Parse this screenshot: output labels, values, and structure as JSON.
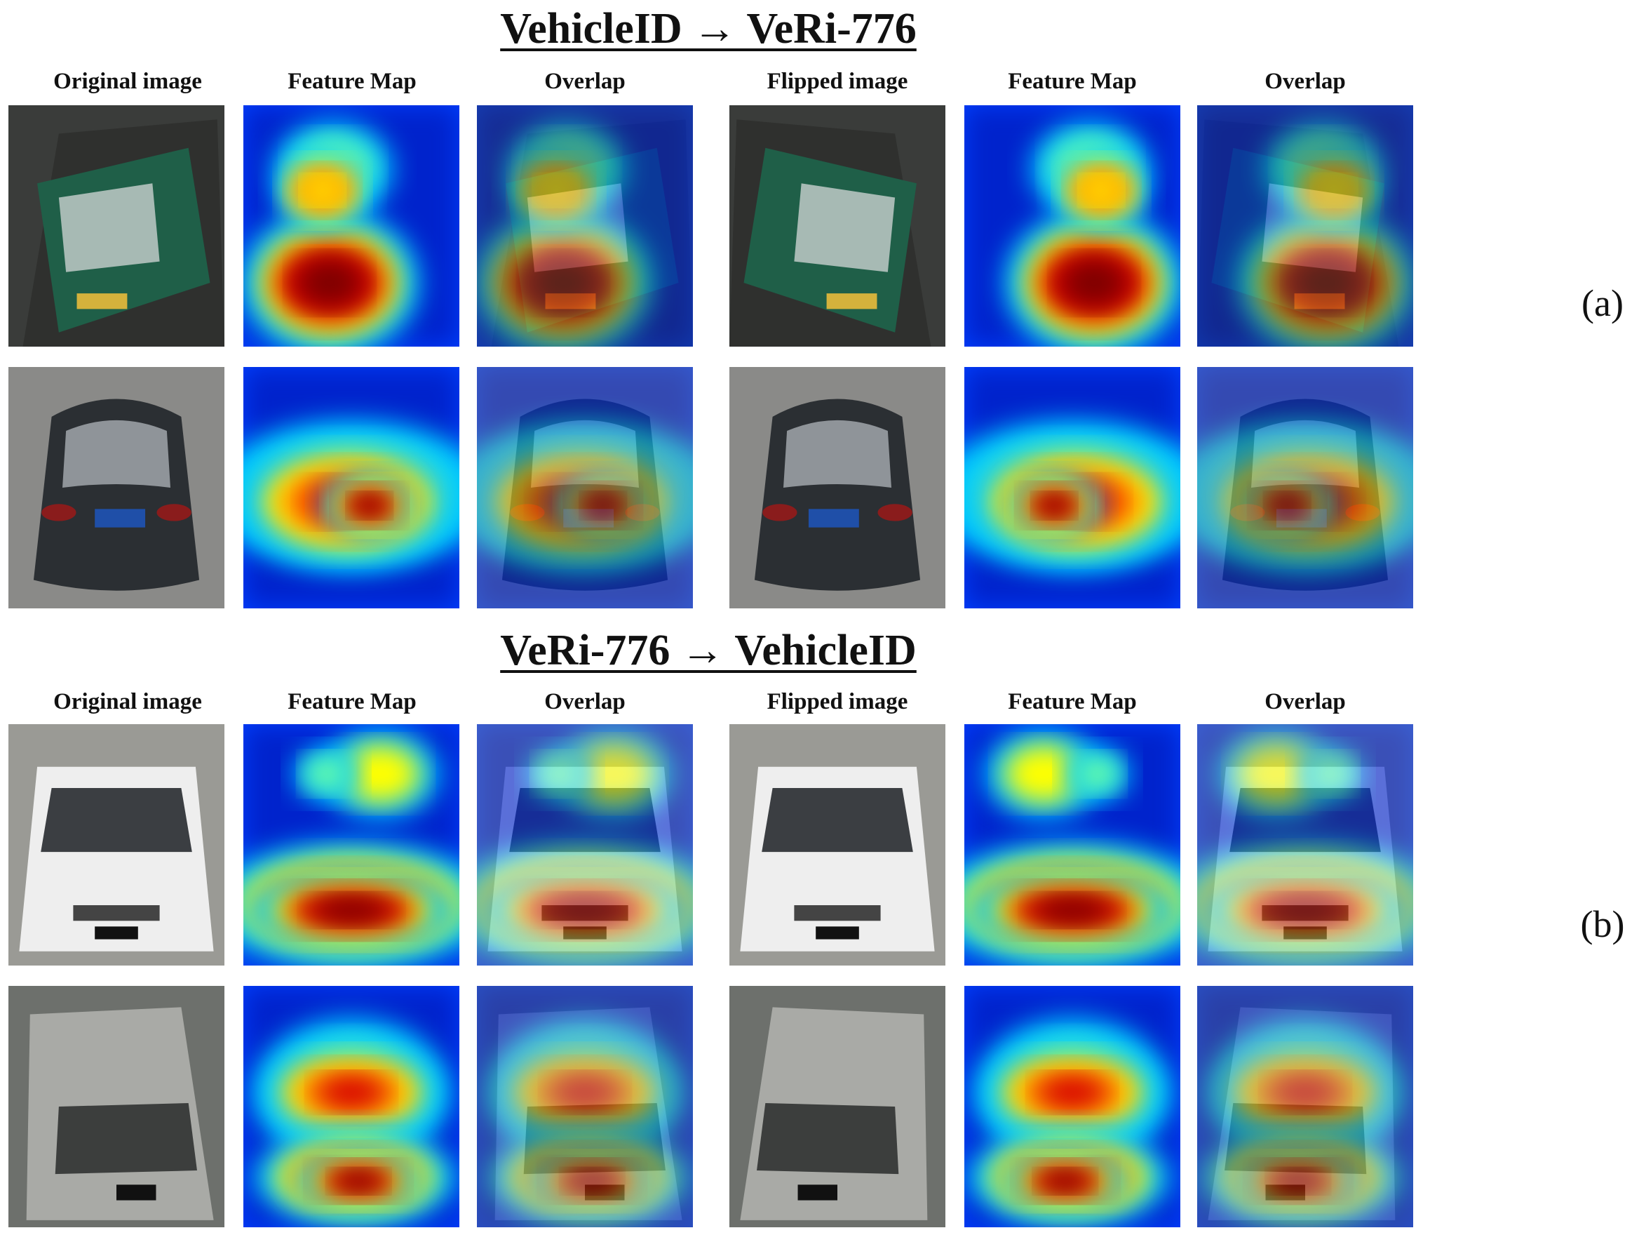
{
  "sections": [
    {
      "title": "VehicleID → VeRi-776",
      "part_label": "(a)",
      "columns": [
        "Original image",
        "Feature Map",
        "Overlap",
        "Flipped image",
        "Feature Map",
        "Overlap"
      ],
      "rows": [
        {
          "subject": "green bus",
          "body_color": "#1f5f48"
        },
        {
          "subject": "dark sedan",
          "body_color": "#2b2f33"
        }
      ]
    },
    {
      "title": "VeRi-776 → VehicleID",
      "part_label": "(b)",
      "columns": [
        "Original image",
        "Feature Map",
        "Overlap",
        "Flipped image",
        "Feature Map",
        "Overlap"
      ],
      "rows": [
        {
          "subject": "white SUV",
          "body_color": "#eeeeee"
        },
        {
          "subject": "silver van",
          "body_color": "#a9aaa6"
        }
      ]
    }
  ],
  "colormap": [
    "#00008f",
    "#0040ff",
    "#00c8ff",
    "#6effa0",
    "#ffff00",
    "#ff8000",
    "#d60000",
    "#7f0000"
  ]
}
